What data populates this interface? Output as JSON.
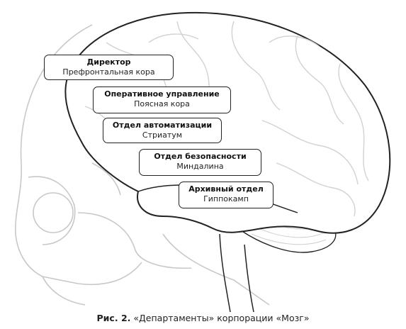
{
  "labels": [
    {
      "title": "Директор",
      "subtitle": "Префронтальная кора"
    },
    {
      "title": "Оперативное управление",
      "subtitle": "Поясная кора"
    },
    {
      "title": "Отдел автоматизации",
      "subtitle": "Стриатум"
    },
    {
      "title": "Отдел безопасности",
      "subtitle": "Миндалина"
    },
    {
      "title": "Архивный отдел",
      "subtitle": "Гиппокамп"
    }
  ],
  "caption": {
    "prefix": "Рис. 2.",
    "text": " «Департаменты» корпорации «Мозг»"
  },
  "colors": {
    "outline": "#222222",
    "skull": "#c8c8c8",
    "sulci": "#d2d2d2"
  }
}
